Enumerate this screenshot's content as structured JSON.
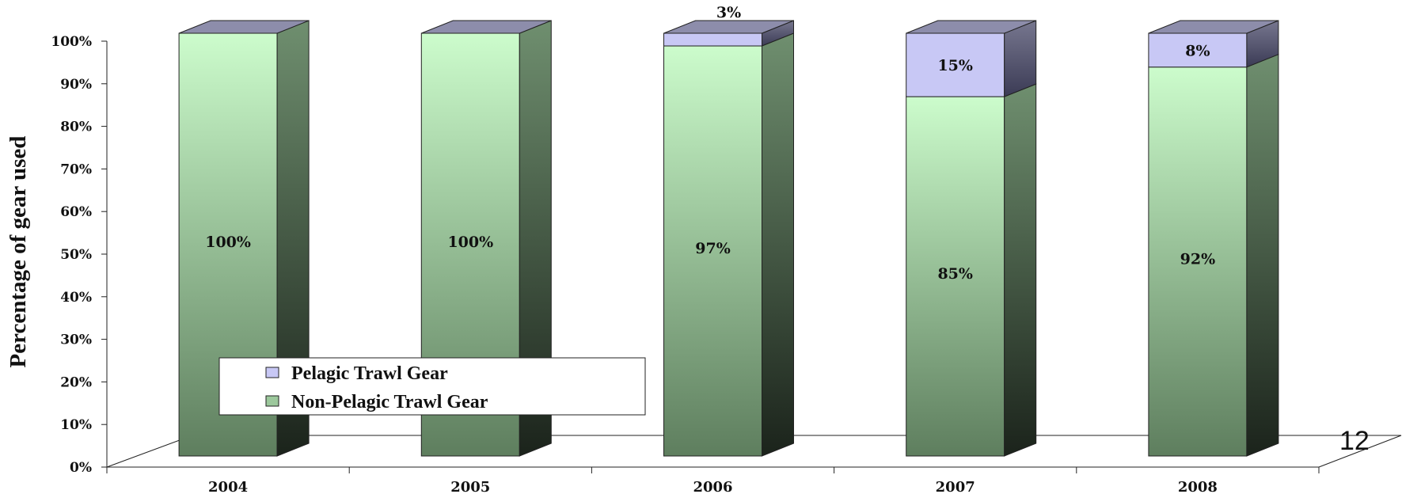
{
  "chart_data": {
    "type": "bar",
    "stacked": true,
    "style": "3d-column",
    "categories": [
      "2004",
      "2005",
      "2006",
      "2007",
      "2008"
    ],
    "series": [
      {
        "name": "Non-Pelagic Trawl Gear",
        "values": [
          100,
          100,
          97,
          85,
          92
        ],
        "color": "#c6f5c6",
        "labels": [
          "100%",
          "100%",
          "97%",
          "85%",
          "92%"
        ]
      },
      {
        "name": "Pelagic Trawl Gear",
        "values": [
          0,
          0,
          3,
          15,
          8
        ],
        "color": "#c8c8f5",
        "labels": [
          "",
          "",
          "3%",
          "15%",
          "8%"
        ]
      }
    ],
    "ylabel": "Percentage of gear used",
    "xlabel": "",
    "ylim": [
      0,
      100
    ],
    "yticks": [
      "0%",
      "10%",
      "20%",
      "30%",
      "40%",
      "50%",
      "60%",
      "70%",
      "80%",
      "90%",
      "100%"
    ],
    "legend_position": "bottom-left",
    "grid": false
  },
  "slide_number": "12"
}
